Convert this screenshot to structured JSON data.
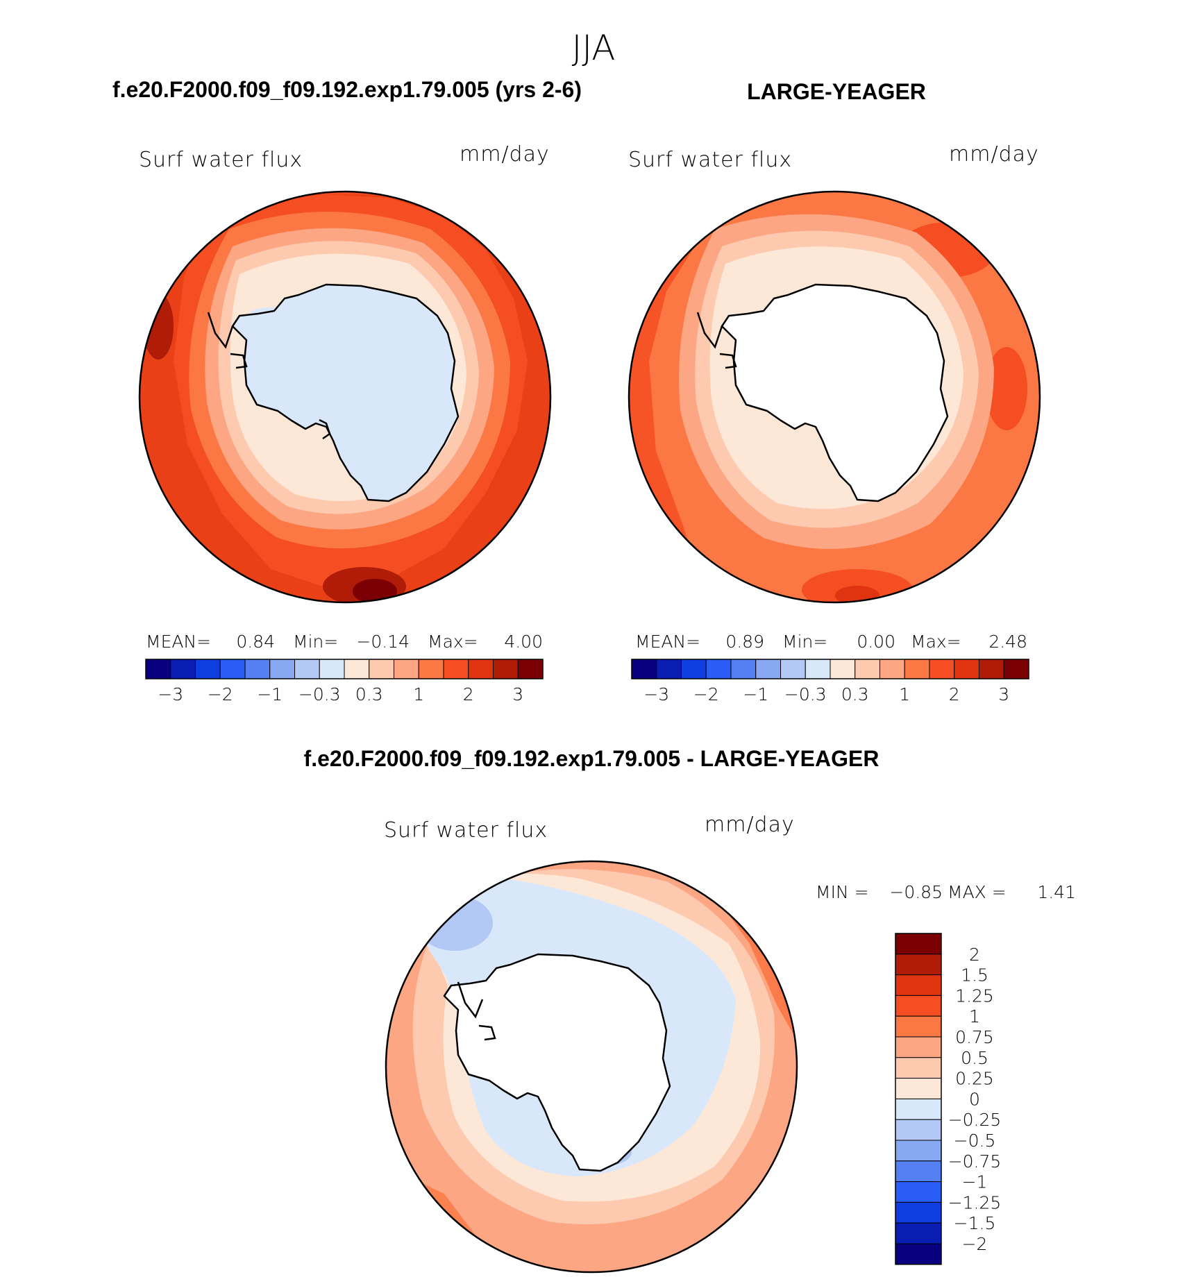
{
  "season": "JJA",
  "panels": [
    {
      "id": "top-left",
      "title": "f.e20.F2000.f09_f09.192.exp1.79.005 (yrs 2-6)",
      "variable": "Surf water flux",
      "units": "mm/day",
      "stats": {
        "mean_label": "MEAN=",
        "mean": "0.84",
        "min_label": "Min=",
        "min": "−0.14",
        "max_label": "Max=",
        "max": "4.00"
      },
      "colorbar_ticks": [
        "−3",
        "−2",
        "−1",
        "−0.3",
        "0.3",
        "1",
        "2",
        "3"
      ]
    },
    {
      "id": "top-right",
      "title": "LARGE-YEAGER",
      "variable": "Surf water flux",
      "units": "mm/day",
      "stats": {
        "mean_label": "MEAN=",
        "mean": "0.89",
        "min_label": "Min=",
        "min": "0.00",
        "max_label": "Max=",
        "max": "2.48"
      },
      "colorbar_ticks": [
        "−3",
        "−2",
        "−1",
        "−0.3",
        "0.3",
        "1",
        "2",
        "3"
      ]
    },
    {
      "id": "bottom",
      "title": "f.e20.F2000.f09_f09.192.exp1.79.005 - LARGE-YEAGER",
      "variable": "Surf water flux",
      "units": "mm/day",
      "stats": {
        "min_label": "MIN =",
        "min": "−0.85",
        "max_label": "MAX =",
        "max": "1.41"
      },
      "colorbar_ticks": [
        "2",
        "1.5",
        "1.25",
        "1",
        "0.75",
        "0.5",
        "0.25",
        "0",
        "−0.25",
        "−0.5",
        "−0.75",
        "−1",
        "−1.25",
        "−1.5",
        "−2"
      ]
    }
  ],
  "colors": {
    "abs_scale": [
      "#08007e",
      "#0a1eb4",
      "#0f3ee0",
      "#2a5cf6",
      "#5580f3",
      "#88a8f3",
      "#b4c8f6",
      "#d8e8fa",
      "#fde8d8",
      "#fdcab0",
      "#fca684",
      "#fb7844",
      "#f44e22",
      "#e03410",
      "#b01c08",
      "#7a0004"
    ],
    "diff_scale_top_to_bottom": [
      "#7a0004",
      "#b01c08",
      "#e03410",
      "#f44e22",
      "#fb7844",
      "#fca684",
      "#fdcab0",
      "#fde8d8",
      "#d8e8fa",
      "#b4c8f6",
      "#88a8f3",
      "#5580f3",
      "#2a5cf6",
      "#0f3ee0",
      "#0a1eb4",
      "#08007e"
    ],
    "land_mask": "#ffffff",
    "coastline": "#000000"
  }
}
